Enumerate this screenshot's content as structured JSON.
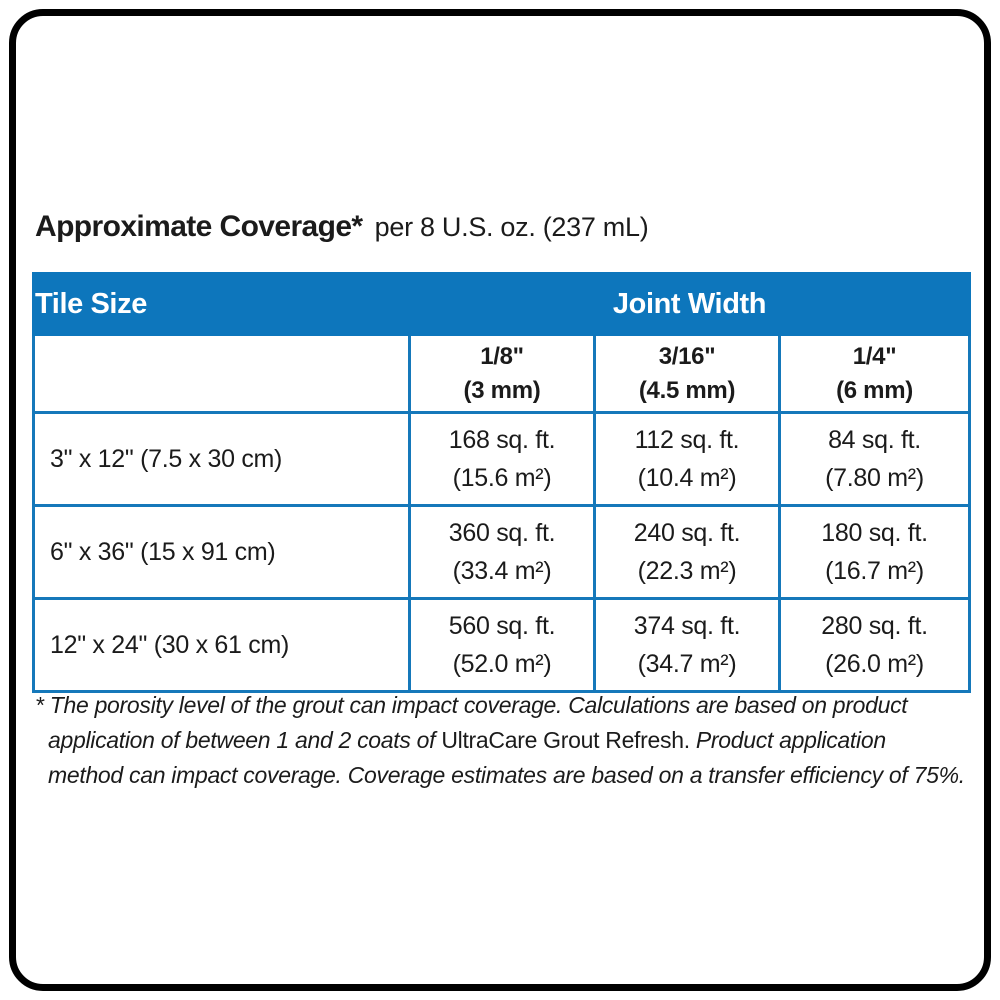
{
  "colors": {
    "header_blue": "#0d76bc",
    "border_blue": "#1578ba",
    "text_dark": "#1b1b1b"
  },
  "title": {
    "main": "Approximate Coverage*",
    "suffix": "per 8 U.S. oz. (237 mL)"
  },
  "table": {
    "header": {
      "tile_size": "Tile Size",
      "joint_width": "Joint Width"
    },
    "joint_columns": [
      {
        "line1": "1/8\"",
        "line2": "(3 mm)"
      },
      {
        "line1": "3/16\"",
        "line2": "(4.5 mm)"
      },
      {
        "line1": "1/4\"",
        "line2": "(6 mm)"
      }
    ],
    "rows": [
      {
        "size": "3\" x 12\" (7.5 x 30 cm)",
        "cells": [
          {
            "line1": "168 sq. ft.",
            "line2": "(15.6 m²)"
          },
          {
            "line1": "112 sq. ft.",
            "line2": "(10.4 m²)"
          },
          {
            "line1": "84 sq. ft.",
            "line2": "(7.80 m²)"
          }
        ]
      },
      {
        "size": "6\" x 36\" (15 x 91 cm)",
        "cells": [
          {
            "line1": "360 sq. ft.",
            "line2": "(33.4 m²)"
          },
          {
            "line1": "240 sq. ft.",
            "line2": "(22.3 m²)"
          },
          {
            "line1": "180 sq. ft.",
            "line2": "(16.7 m²)"
          }
        ]
      },
      {
        "size": "12\" x 24\" (30 x 61 cm)",
        "cells": [
          {
            "line1": "560 sq. ft.",
            "line2": "(52.0 m²)"
          },
          {
            "line1": "374 sq. ft.",
            "line2": "(34.7 m²)"
          },
          {
            "line1": "280 sq. ft.",
            "line2": "(26.0 m²)"
          }
        ]
      }
    ]
  },
  "footnote": {
    "line1": "* The porosity level of the grout can impact coverage. Calculations are based on product",
    "line2_italic_a": "application of between 1 and 2 coats of ",
    "line2_upright": "UltraCare Grout Refresh.",
    "line2_italic_b": " Product application",
    "line3": "method can impact coverage. Coverage estimates are based on a transfer efficiency of 75%."
  }
}
